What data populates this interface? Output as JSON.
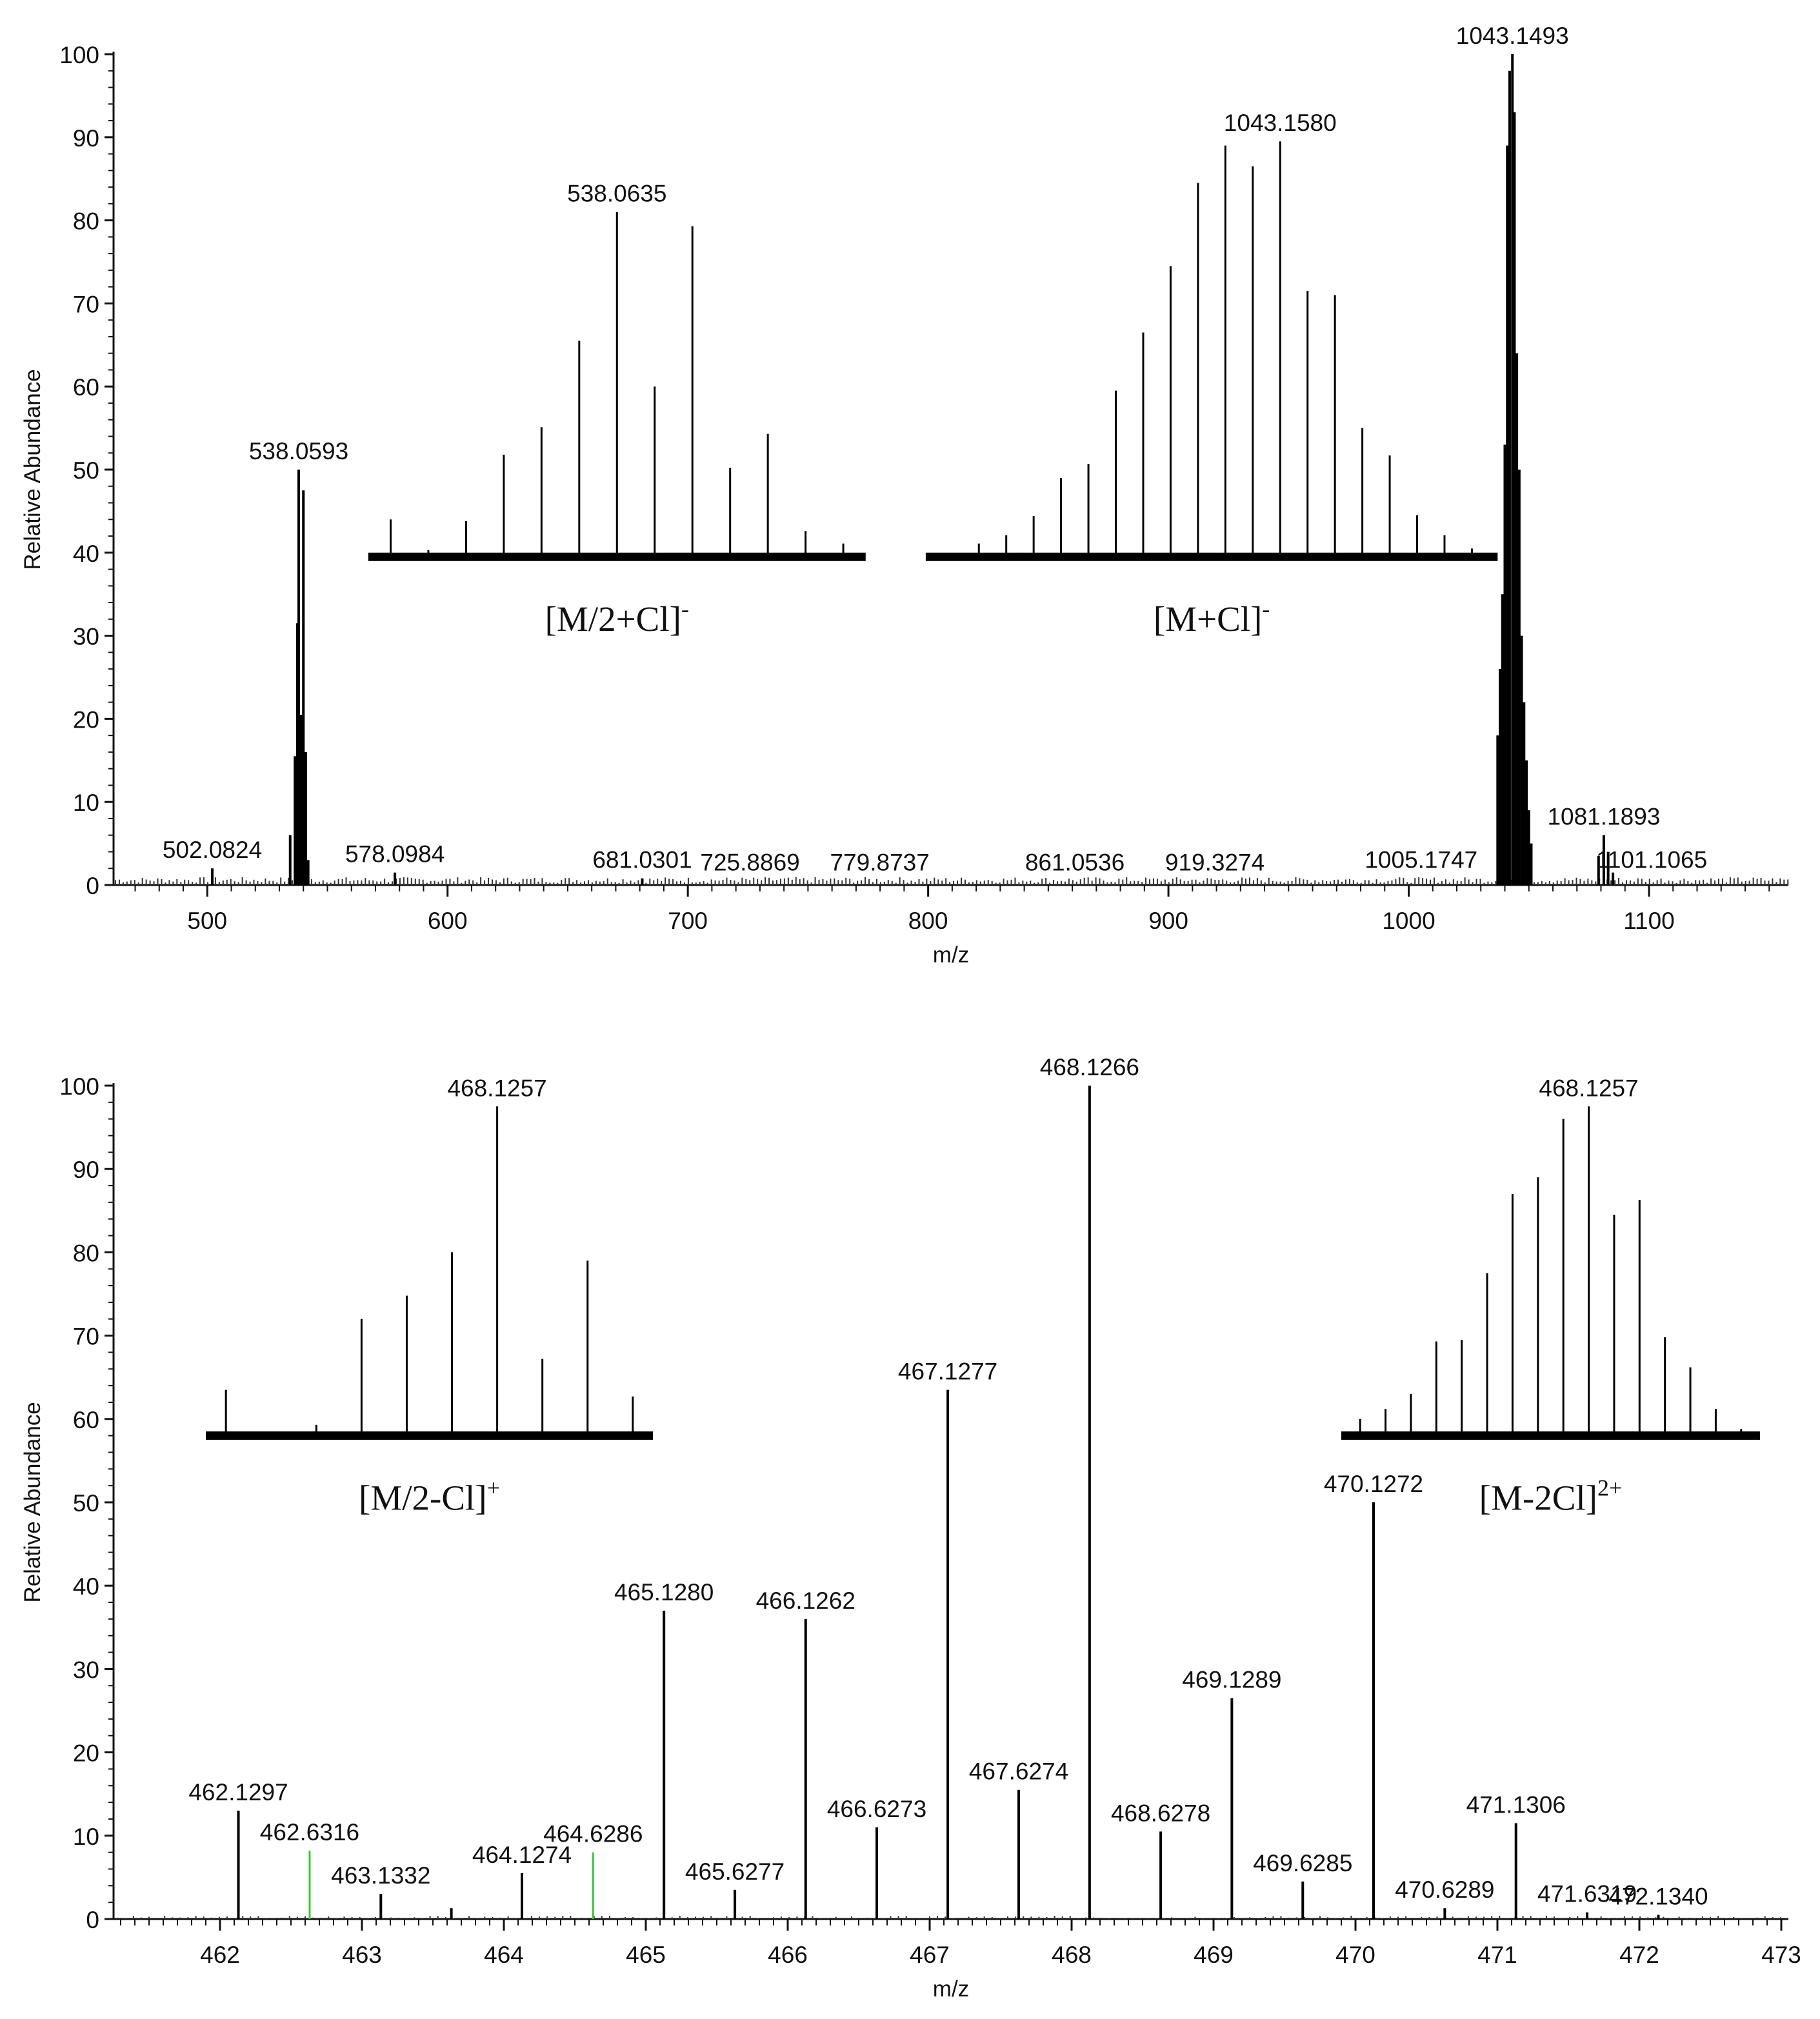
{
  "chart_data": [
    {
      "type": "bar",
      "panel": "top",
      "xlabel": "m/z",
      "ylabel": "Relative Abundance",
      "xlim": [
        461,
        1158
      ],
      "ylim": [
        0,
        100
      ],
      "x_ticks": [
        500,
        600,
        700,
        800,
        900,
        1000,
        1100
      ],
      "y_ticks": [
        0,
        10,
        20,
        30,
        40,
        50,
        60,
        70,
        80,
        90,
        100
      ],
      "peaks": [
        {
          "x": 502.0824,
          "y": 2.0
        },
        {
          "x": 534.5,
          "y": 6.0
        },
        {
          "x": 536.5,
          "y": 15.5
        },
        {
          "x": 537.5,
          "y": 31.5
        },
        {
          "x": 538.0593,
          "y": 50.0
        },
        {
          "x": 539.0,
          "y": 20.5
        },
        {
          "x": 540.0,
          "y": 47.5
        },
        {
          "x": 541.0,
          "y": 16.0
        },
        {
          "x": 542.0,
          "y": 3.0
        },
        {
          "x": 578.0984,
          "y": 1.5
        },
        {
          "x": 681.0301,
          "y": 0.8
        },
        {
          "x": 1037.0,
          "y": 18.0
        },
        {
          "x": 1038.0,
          "y": 26.0
        },
        {
          "x": 1039.0,
          "y": 35.0
        },
        {
          "x": 1040.0,
          "y": 53.0
        },
        {
          "x": 1041.0,
          "y": 89.0
        },
        {
          "x": 1042.0,
          "y": 98.0
        },
        {
          "x": 1043.1493,
          "y": 100.0
        },
        {
          "x": 1044.0,
          "y": 93.0
        },
        {
          "x": 1045.0,
          "y": 64.0
        },
        {
          "x": 1046.0,
          "y": 50.0
        },
        {
          "x": 1047.0,
          "y": 30.0
        },
        {
          "x": 1048.0,
          "y": 22.0
        },
        {
          "x": 1049.0,
          "y": 15.0
        },
        {
          "x": 1050.0,
          "y": 9.0
        },
        {
          "x": 1051.0,
          "y": 5.0
        },
        {
          "x": 1079.0,
          "y": 3.5
        },
        {
          "x": 1081.1893,
          "y": 6.0
        },
        {
          "x": 1083.0,
          "y": 4.0
        },
        {
          "x": 1085.0,
          "y": 1.5
        }
      ],
      "annotations": [
        {
          "x": 502.0824,
          "y": 2.0,
          "text": "502.0824"
        },
        {
          "x": 538.0593,
          "y": 50.0,
          "text": "538.0593"
        },
        {
          "x": 578.0984,
          "y": 1.5,
          "text": "578.0984"
        },
        {
          "x": 681.0301,
          "y": 0.8,
          "text": "681.0301"
        },
        {
          "x": 725.8869,
          "y": 0.5,
          "text": "725.8869"
        },
        {
          "x": 779.8737,
          "y": 0.5,
          "text": "779.8737"
        },
        {
          "x": 861.0536,
          "y": 0.5,
          "text": "861.0536"
        },
        {
          "x": 919.3274,
          "y": 0.5,
          "text": "919.3274"
        },
        {
          "x": 1005.1747,
          "y": 0.8,
          "text": "1005.1747"
        },
        {
          "x": 1043.1493,
          "y": 100.0,
          "text": "1043.1493"
        },
        {
          "x": 1081.1893,
          "y": 6.0,
          "text": "1081.1893"
        },
        {
          "x": 1101.1065,
          "y": 0.8,
          "text": "1101.1065"
        }
      ],
      "insets": [
        {
          "label_main": "[M/2+Cl]",
          "label_sup": "-",
          "x_from": 567,
          "x_to": 774,
          "base_y": 39.5,
          "peak_label": "538.0635",
          "values": [
            4.5,
            0.8,
            4.3,
            12.3,
            15.6,
            26.0,
            41.5,
            20.5,
            39.8,
            10.7,
            14.8,
            3.1,
            1.6
          ]
        },
        {
          "label_main": "[M+Cl]",
          "label_sup": "-",
          "x_from": 799,
          "x_to": 1037,
          "base_y": 39.5,
          "peak_label": "1043.1580",
          "values": [
            0.3,
            1.6,
            2.6,
            4.9,
            9.5,
            11.2,
            20.0,
            27.0,
            35.0,
            45.0,
            49.5,
            47.0,
            50.0,
            32.0,
            31.5,
            15.5,
            12.2,
            5.0,
            2.6,
            1.0
          ]
        }
      ]
    },
    {
      "type": "bar",
      "panel": "bottom",
      "xlabel": "m/z",
      "ylabel": "Relative Abundance",
      "xlim": [
        461.25,
        473.05
      ],
      "ylim": [
        0,
        100
      ],
      "x_ticks": [
        462,
        463,
        464,
        465,
        466,
        467,
        468,
        469,
        470,
        471,
        472,
        473
      ],
      "y_ticks": [
        0,
        10,
        20,
        30,
        40,
        50,
        60,
        70,
        80,
        90,
        100
      ],
      "peaks": [
        {
          "x": 462.1297,
          "y": 13.0
        },
        {
          "x": 462.6316,
          "y": 8.2,
          "color": "#33cc33"
        },
        {
          "x": 463.1332,
          "y": 3.0
        },
        {
          "x": 463.63,
          "y": 1.3
        },
        {
          "x": 464.1274,
          "y": 5.5
        },
        {
          "x": 464.6286,
          "y": 8.0,
          "color": "#33cc33"
        },
        {
          "x": 465.128,
          "y": 37.0
        },
        {
          "x": 465.6277,
          "y": 3.5
        },
        {
          "x": 466.1262,
          "y": 36.0
        },
        {
          "x": 466.6273,
          "y": 11.0
        },
        {
          "x": 467.1277,
          "y": 63.5
        },
        {
          "x": 467.6274,
          "y": 15.5
        },
        {
          "x": 468.1266,
          "y": 100.0
        },
        {
          "x": 468.6278,
          "y": 10.5
        },
        {
          "x": 469.1289,
          "y": 26.5
        },
        {
          "x": 469.6285,
          "y": 4.5
        },
        {
          "x": 470.1272,
          "y": 50.0
        },
        {
          "x": 470.6289,
          "y": 1.3
        },
        {
          "x": 471.1306,
          "y": 11.5
        },
        {
          "x": 471.6319,
          "y": 0.8
        },
        {
          "x": 472.134,
          "y": 0.5
        }
      ],
      "annotations": [
        {
          "x": 462.1297,
          "y": 13.0,
          "text": "462.1297"
        },
        {
          "x": 462.6316,
          "y": 8.2,
          "text": "462.6316"
        },
        {
          "x": 463.1332,
          "y": 3.0,
          "text": "463.1332"
        },
        {
          "x": 464.1274,
          "y": 5.5,
          "text": "464.1274"
        },
        {
          "x": 464.6286,
          "y": 8.0,
          "text": "464.6286"
        },
        {
          "x": 465.128,
          "y": 37.0,
          "text": "465.1280"
        },
        {
          "x": 465.6277,
          "y": 3.5,
          "text": "465.6277"
        },
        {
          "x": 466.1262,
          "y": 36.0,
          "text": "466.1262"
        },
        {
          "x": 466.6273,
          "y": 11.0,
          "text": "466.6273"
        },
        {
          "x": 467.1277,
          "y": 63.5,
          "text": "467.1277"
        },
        {
          "x": 467.6274,
          "y": 15.5,
          "text": "467.6274"
        },
        {
          "x": 468.1266,
          "y": 100.0,
          "text": "468.1266"
        },
        {
          "x": 468.6278,
          "y": 10.5,
          "text": "468.6278"
        },
        {
          "x": 469.1289,
          "y": 26.5,
          "text": "469.1289"
        },
        {
          "x": 469.6285,
          "y": 4.5,
          "text": "469.6285"
        },
        {
          "x": 470.1272,
          "y": 50.0,
          "text": "470.1272"
        },
        {
          "x": 470.6289,
          "y": 1.3,
          "text": "470.6289"
        },
        {
          "x": 471.1306,
          "y": 11.5,
          "text": "471.1306"
        },
        {
          "x": 471.6319,
          "y": 0.8,
          "text": "471.6319"
        },
        {
          "x": 472.134,
          "y": 0.5,
          "text": "472.1340"
        }
      ],
      "insets": [
        {
          "label_main": "[M/2-Cl]",
          "label_sup": "+",
          "x_from": 461.9,
          "x_to": 465.05,
          "base_y": 58.0,
          "peak_label": "468.1257",
          "values": [
            5.5,
            0.4,
            1.3,
            14.0,
            16.8,
            22.0,
            39.5,
            9.2,
            21.0,
            4.7
          ]
        },
        {
          "label_main": "[M-2Cl]",
          "label_sup": "2+",
          "x_from": 469.9,
          "x_to": 472.85,
          "base_y": 58.0,
          "peak_label": "468.1257",
          "values": [
            2.0,
            3.2,
            5.0,
            11.3,
            11.5,
            19.5,
            29.0,
            31.0,
            38.0,
            39.5,
            26.5,
            28.3,
            11.8,
            8.2,
            3.2,
            0.8
          ]
        }
      ]
    }
  ]
}
